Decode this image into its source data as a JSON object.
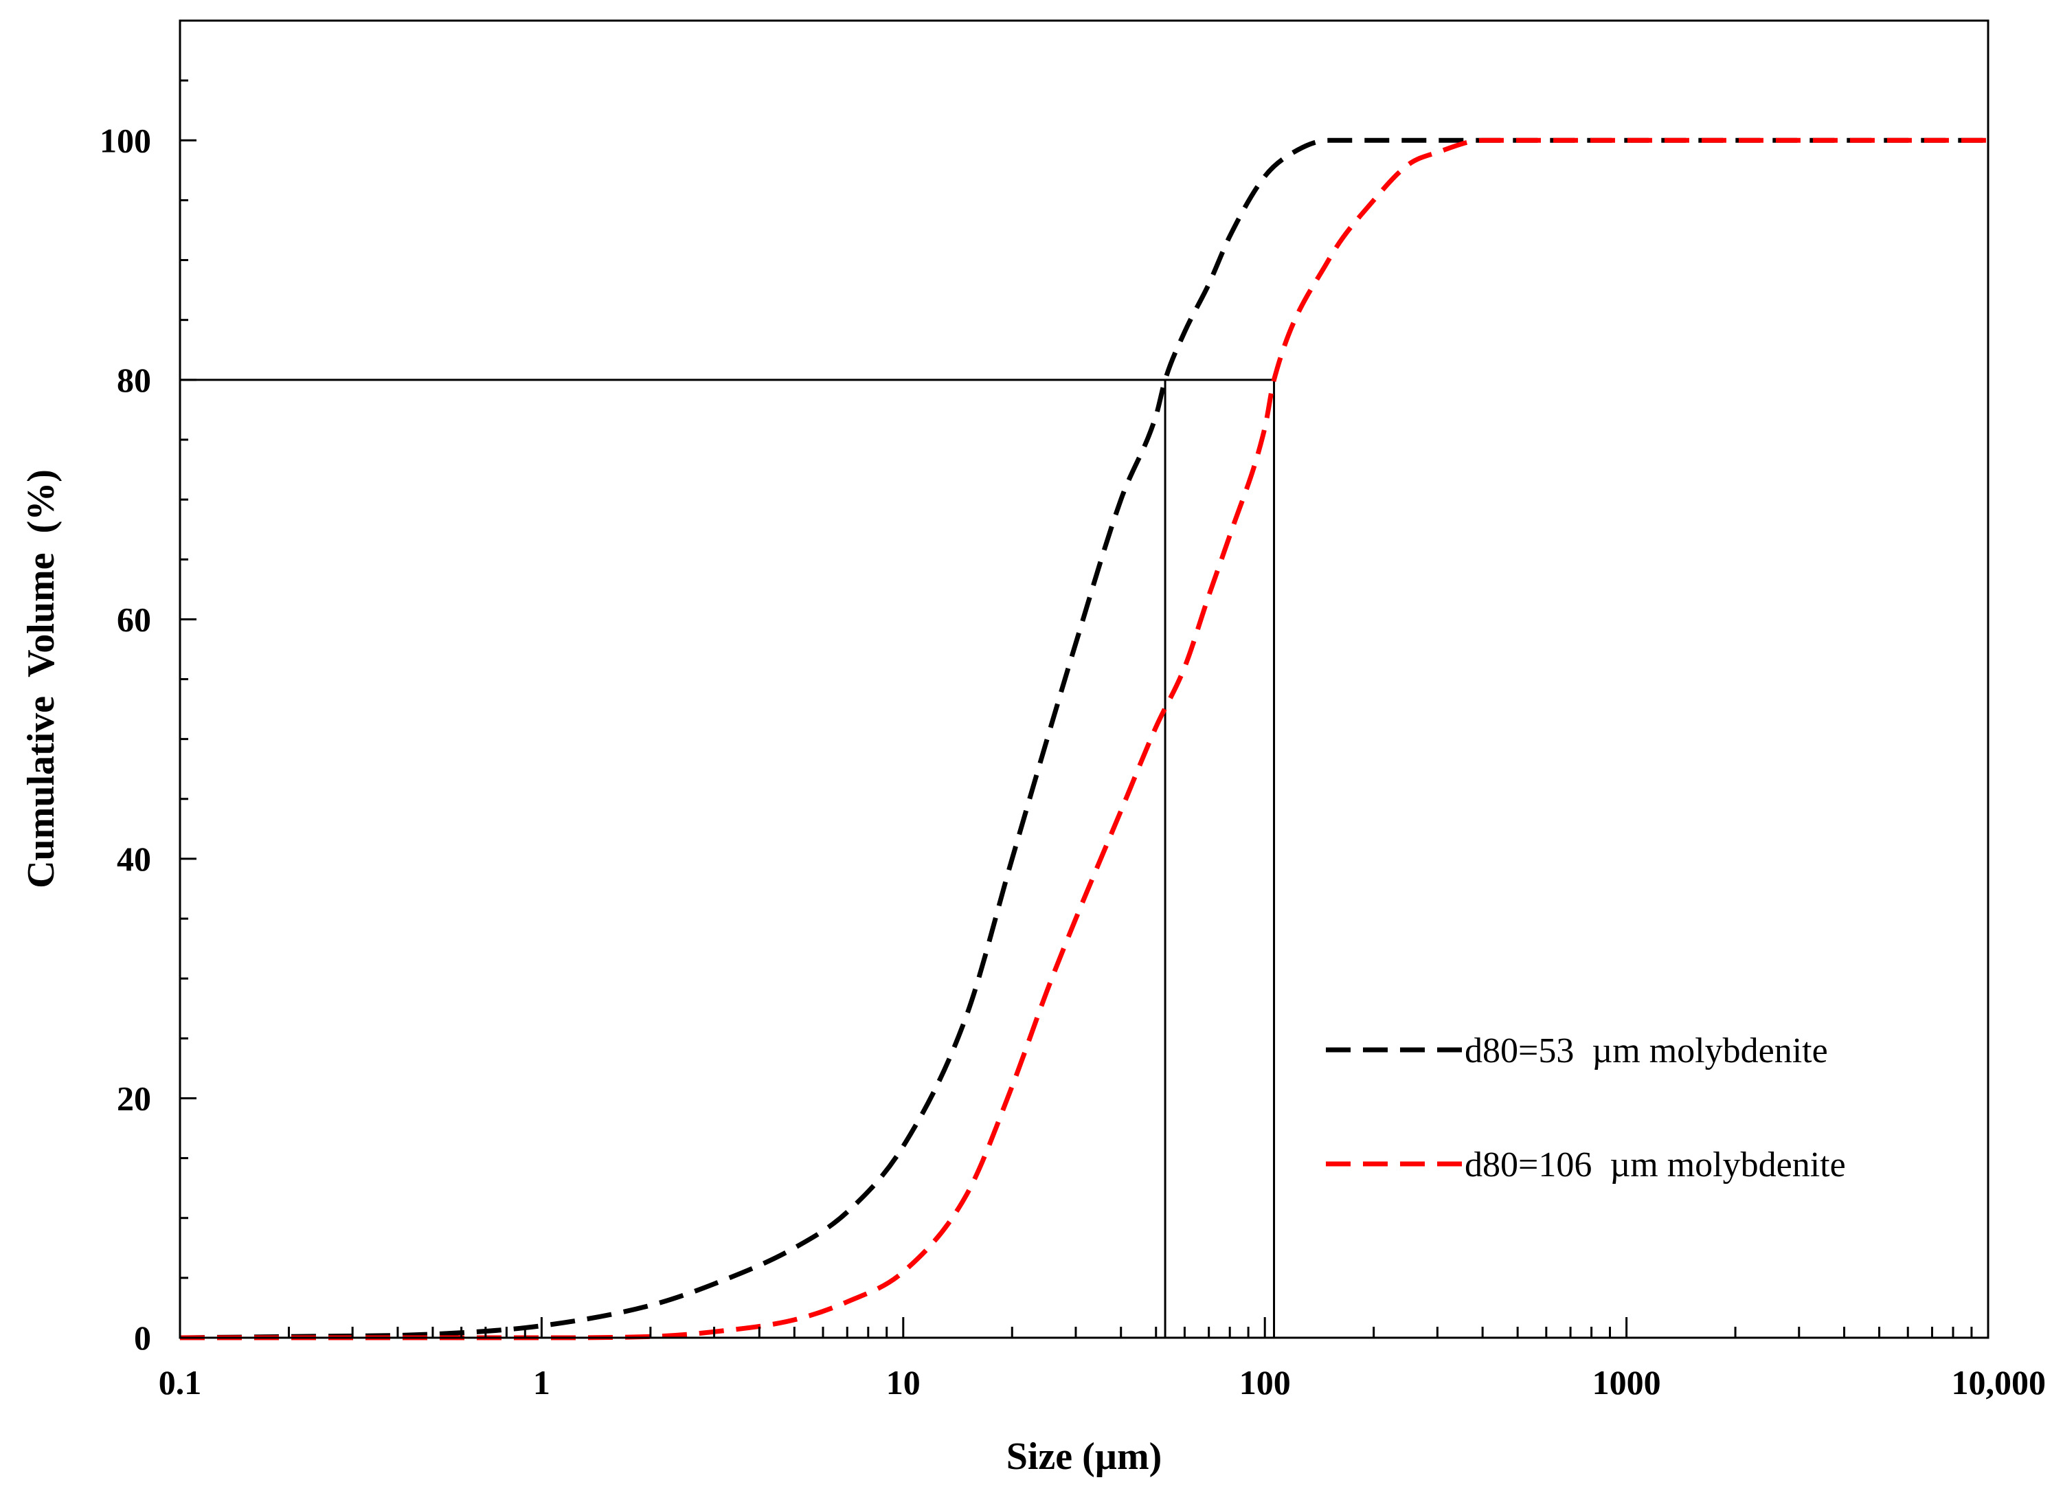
{
  "chart_data": {
    "type": "line",
    "xlabel": "Size (µm)",
    "ylabel": "Cumulative  Volume  (%)",
    "xscale": "log",
    "xlim": [
      0.1,
      10000
    ],
    "ylim": [
      0,
      110
    ],
    "x_ticks": [
      {
        "value": 0.1,
        "label": "0.1"
      },
      {
        "value": 1,
        "label": "1"
      },
      {
        "value": 10,
        "label": "10"
      },
      {
        "value": 100,
        "label": "100"
      },
      {
        "value": 1000,
        "label": "1000"
      },
      {
        "value": 10000,
        "label": "10,000"
      }
    ],
    "y_ticks": [
      {
        "value": 0,
        "label": "0"
      },
      {
        "value": 20,
        "label": "20"
      },
      {
        "value": 40,
        "label": "40"
      },
      {
        "value": 60,
        "label": "60"
      },
      {
        "value": 80,
        "label": "80"
      },
      {
        "value": 100,
        "label": "100"
      }
    ],
    "grid": false,
    "legend_position": "bottom-right",
    "series": [
      {
        "name": "d80=53  µm molybdenite",
        "color": "#000000",
        "dash": "dashed",
        "x": [
          0.1,
          0.2,
          0.5,
          1,
          2,
          3,
          5,
          7,
          10,
          15,
          20,
          25,
          30,
          40,
          50,
          53,
          60,
          70,
          80,
          100,
          120,
          150,
          200,
          300,
          500,
          1000,
          10000
        ],
        "y": [
          0,
          0.1,
          0.3,
          1,
          2.7,
          4.5,
          7.5,
          10.5,
          16,
          27,
          40,
          50,
          58,
          70,
          77,
          80,
          84,
          88,
          92,
          97,
          99,
          100,
          100,
          100,
          100,
          100,
          100
        ]
      },
      {
        "name": "d80=106  µm molybdenite",
        "color": "#ff0000",
        "dash": "dashed",
        "x": [
          0.1,
          1,
          2,
          3,
          5,
          7,
          10,
          15,
          20,
          25,
          30,
          40,
          50,
          60,
          70,
          80,
          100,
          106,
          150,
          200,
          250,
          300,
          400,
          500,
          1000,
          10000
        ],
        "y": [
          0,
          0,
          0.1,
          0.5,
          1.5,
          3,
          5.5,
          12,
          21,
          29,
          35,
          44,
          51,
          56,
          62,
          67,
          76,
          80,
          90,
          95,
          98,
          99,
          100,
          100,
          100,
          100
        ]
      }
    ],
    "reference_lines": {
      "y": 80,
      "x": [
        53,
        106
      ]
    }
  }
}
